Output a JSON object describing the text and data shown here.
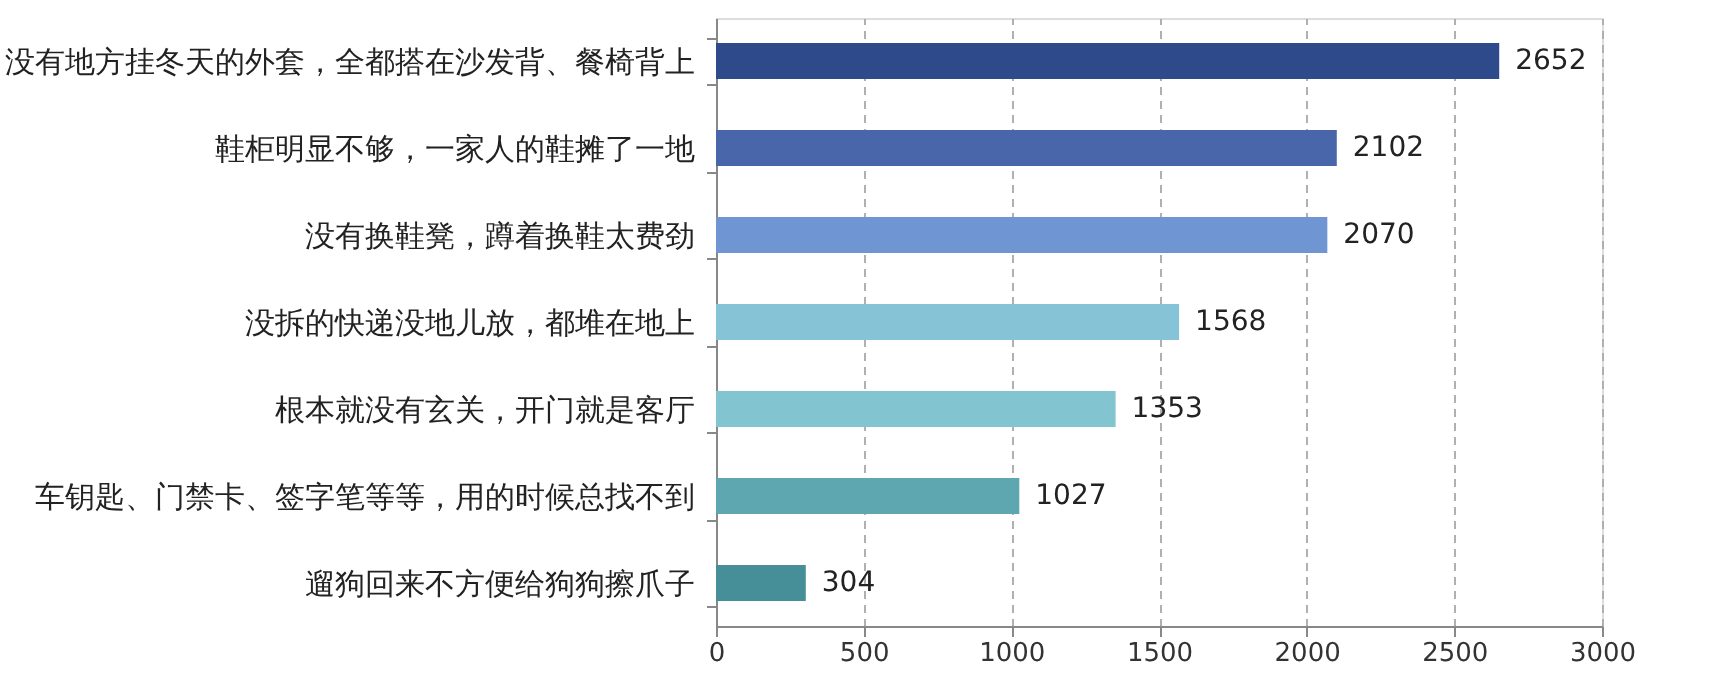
{
  "chart_data": {
    "type": "bar",
    "orientation": "horizontal",
    "categories": [
      "没有地方挂冬天的外套，全都搭在沙发背、餐椅背上",
      "鞋柜明显不够，一家人的鞋摊了一地",
      "没有换鞋凳，蹲着换鞋太费劲",
      "没拆的快递没地儿放，都堆在地上",
      "根本就没有玄关，开门就是客厅",
      "车钥匙、门禁卡、签字笔等等，用的时候总找不到",
      "遛狗回来不方便给狗狗擦爪子"
    ],
    "values": [
      2652,
      2102,
      2070,
      1568,
      1353,
      1027,
      304
    ],
    "colors": [
      "#2f4a8a",
      "#4a66aa",
      "#6f96d2",
      "#86c3d6",
      "#82c4d0",
      "#5ea6b0",
      "#468f98"
    ],
    "xlim": [
      0,
      3000
    ],
    "xticks": [
      0,
      500,
      1000,
      1500,
      2000,
      2500,
      3000
    ],
    "grid": "x",
    "data_labels": true
  }
}
